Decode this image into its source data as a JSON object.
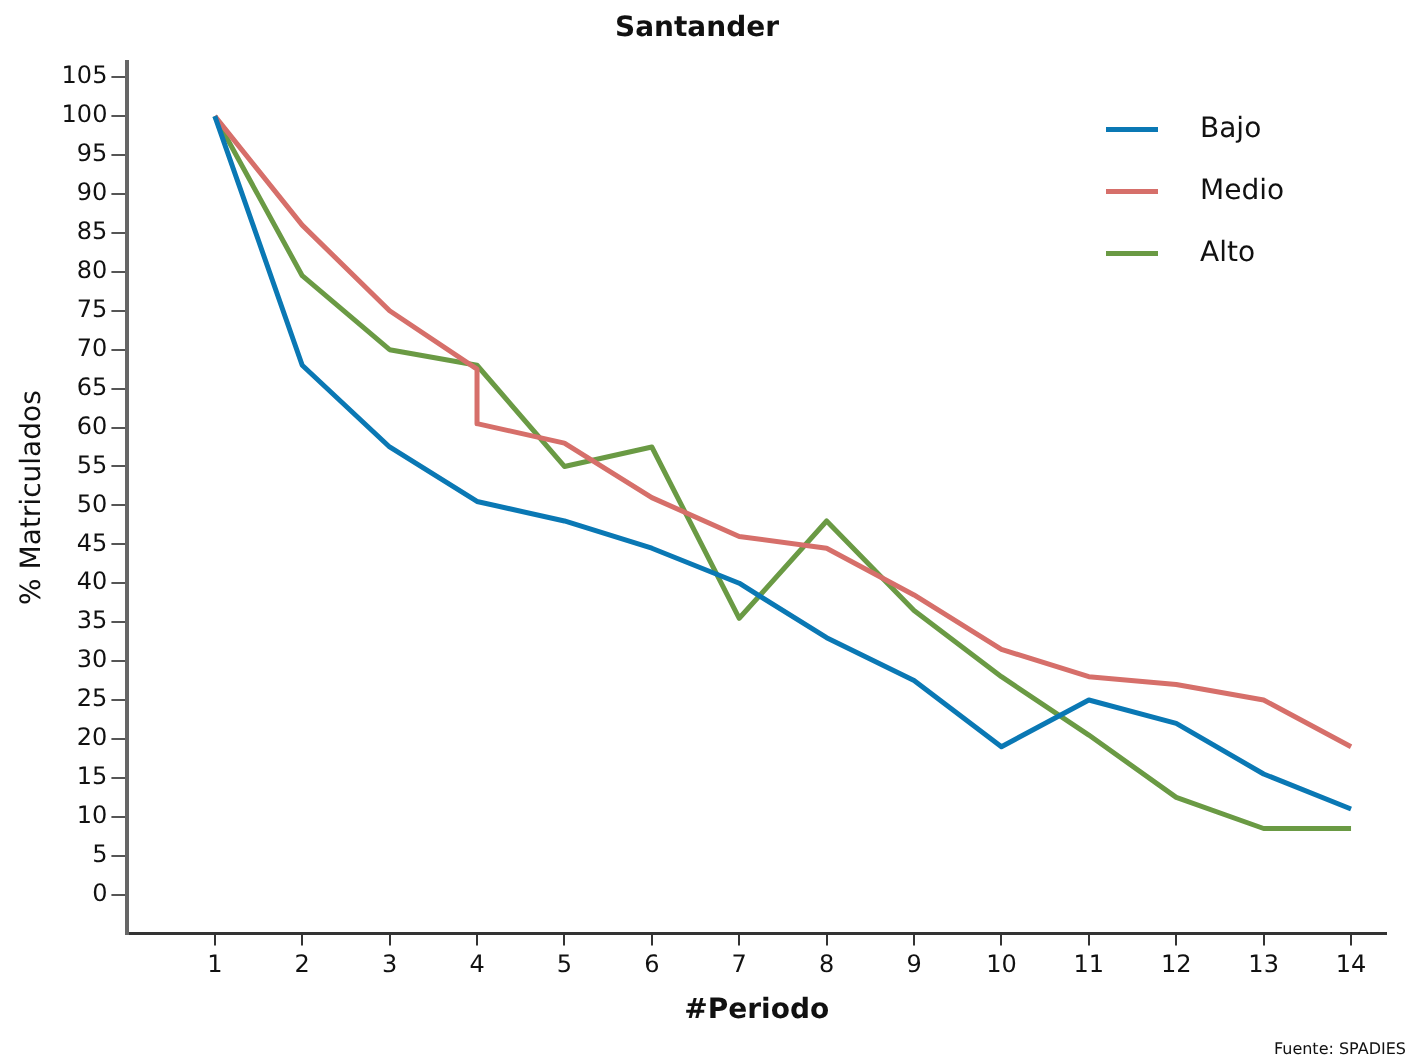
{
  "chart_data": {
    "type": "line",
    "title": "Santander",
    "xlabel": "#Periodo",
    "ylabel": "% Matriculados",
    "xlim": [
      0,
      14.4
    ],
    "xticks": [
      1,
      2,
      3,
      4,
      5,
      6,
      7,
      8,
      9,
      10,
      11,
      12,
      13,
      14
    ],
    "ylim": [
      -5,
      107
    ],
    "yticks": [
      0,
      5,
      10,
      15,
      20,
      25,
      30,
      35,
      40,
      45,
      50,
      55,
      60,
      65,
      70,
      75,
      80,
      85,
      90,
      95,
      100,
      105
    ],
    "grid": false,
    "legend": "top right",
    "marker": "none",
    "line_style": "solid",
    "annotations": [
      "Fuente: SPADIES"
    ],
    "series": [
      {
        "name": "Bajo",
        "color": "#0a78b4",
        "x": [
          1,
          2,
          3,
          4,
          5,
          6,
          7,
          8,
          9,
          10,
          11,
          12,
          13,
          14
        ],
        "values": [
          100,
          68,
          57.5,
          50.5,
          48,
          44.5,
          40,
          33,
          27.5,
          19,
          25,
          22,
          15.5,
          11
        ]
      },
      {
        "name": "Medio",
        "color": "#d66f6a",
        "x": [
          1,
          2,
          3,
          4,
          4,
          5,
          6,
          7,
          8,
          9,
          10,
          11,
          12,
          13,
          14
        ],
        "values": [
          100,
          86,
          75,
          67.5,
          60.5,
          58,
          51,
          46,
          44.5,
          38.5,
          31.5,
          28,
          27,
          25,
          19
        ]
      },
      {
        "name": "Alto",
        "color": "#6a9a44",
        "x": [
          1,
          2,
          3,
          4,
          5,
          6,
          7,
          8,
          9,
          10,
          11,
          12,
          13,
          14
        ],
        "values": [
          100,
          79.5,
          70,
          68,
          55,
          57.5,
          35.5,
          48,
          36.5,
          28,
          20.5,
          12.5,
          8.5,
          8.5
        ]
      }
    ]
  }
}
